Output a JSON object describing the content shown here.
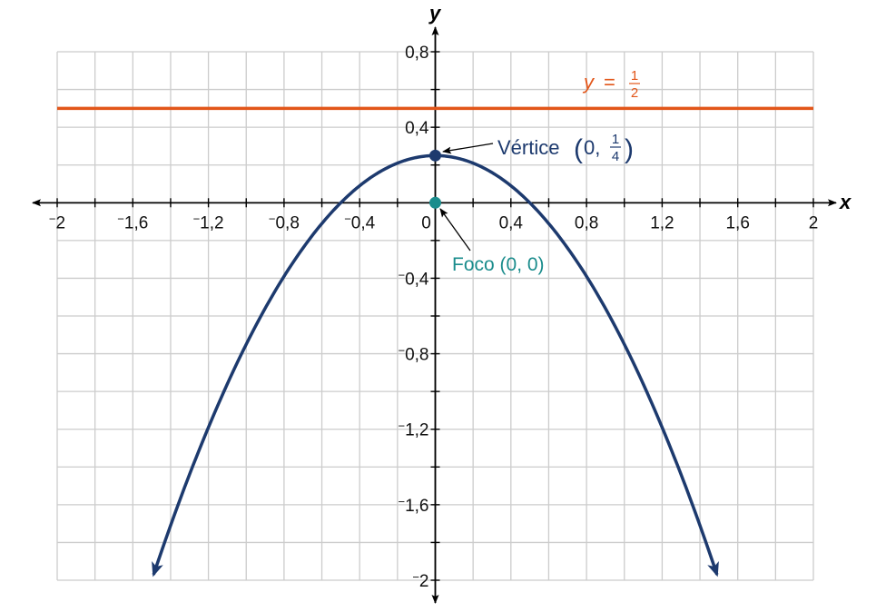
{
  "chart_data": {
    "type": "line",
    "xlabel": "x",
    "ylabel": "y",
    "xlim": [
      -2,
      2
    ],
    "ylim": [
      -2,
      0.8
    ],
    "grid": true,
    "grid_step": 0.2,
    "x_ticks": [
      {
        "value": -2,
        "label": "−2"
      },
      {
        "value": -1.6,
        "label": "−1,6"
      },
      {
        "value": -1.2,
        "label": "−1,2"
      },
      {
        "value": -0.8,
        "label": "−0,8"
      },
      {
        "value": -0.4,
        "label": "−0,4"
      },
      {
        "value": 0,
        "label": "0"
      },
      {
        "value": 0.4,
        "label": "0,4"
      },
      {
        "value": 0.8,
        "label": "0,8"
      },
      {
        "value": 1.2,
        "label": "1,2"
      },
      {
        "value": 1.6,
        "label": "1,6"
      },
      {
        "value": 2,
        "label": "2"
      }
    ],
    "y_ticks": [
      {
        "value": 0.8,
        "label": "0,8"
      },
      {
        "value": 0.4,
        "label": "0,4"
      },
      {
        "value": -0.4,
        "label": "−0,4"
      },
      {
        "value": -0.8,
        "label": "−0,8"
      },
      {
        "value": -1.2,
        "label": "−1,2"
      },
      {
        "value": -1.6,
        "label": "−1,6"
      },
      {
        "value": -2,
        "label": "−2"
      }
    ],
    "series": [
      {
        "kind": "parabola",
        "equation": "y = 1/4 − x²",
        "x_range": [
          -1.49,
          1.49
        ],
        "color": "#1d3a6e",
        "arrows": "both-ends"
      },
      {
        "kind": "horizontal-line",
        "y": 0.5,
        "color": "#e2561a"
      }
    ],
    "points": [
      {
        "x": 0,
        "y": 0.25,
        "color": "#1d3a6e"
      },
      {
        "x": 0,
        "y": 0,
        "color": "#1a8c8c"
      }
    ],
    "annotations": {
      "directrix": {
        "prefix": "y",
        "eq": "=",
        "num": "1",
        "den": "2",
        "color": "#e2561a"
      },
      "vertex": {
        "text": "Vértice",
        "open": "(",
        "coord": "0,",
        "num": "1",
        "den": "4",
        "close": ")",
        "color": "#1d3a6e"
      },
      "focus": {
        "text": "Foco (0, 0)",
        "color": "#1a8c8c"
      }
    }
  }
}
